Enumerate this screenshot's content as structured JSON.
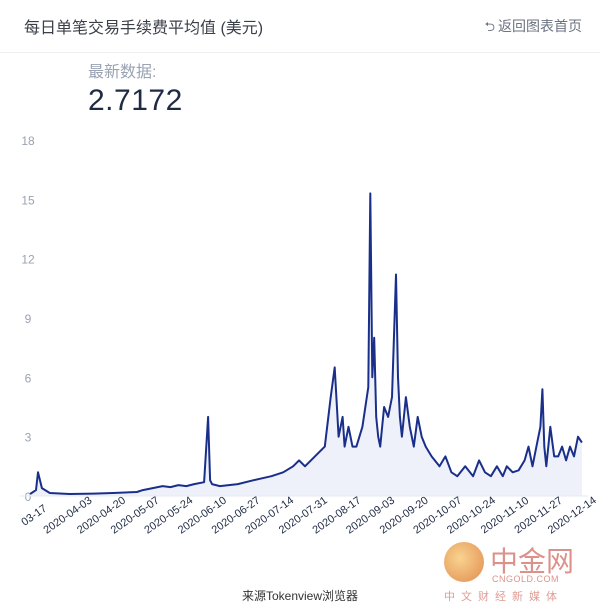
{
  "header": {
    "title": "每日单笔交易手续费平均值 (美元)",
    "back_label": "返回图表首页",
    "back_icon": "back-arrow-icon"
  },
  "latest": {
    "label": "最新数据:",
    "value": "2.7172"
  },
  "chart_data": {
    "type": "area",
    "title": "每日单笔交易手续费平均值 (美元)",
    "xlabel": "",
    "ylabel": "",
    "ylim": [
      0,
      18
    ],
    "yticks": [
      0,
      3,
      6,
      9,
      12,
      15,
      18
    ],
    "x_tick_labels": [
      "03-17",
      "2020-04-03",
      "2020-04-20",
      "2020-05-07",
      "2020-05-24",
      "2020-06-10",
      "2020-06-27",
      "2020-07-14",
      "2020-07-31",
      "2020-08-17",
      "2020-09-03",
      "2020-09-20",
      "2020-10-07",
      "2020-10-24",
      "2020-11-10",
      "2020-11-27",
      "2020-12-14"
    ],
    "grid": false,
    "line_color": "#1a2f8a",
    "fill_color": "#eef1fa",
    "series": [
      {
        "x": [
          "2020-03-14",
          "2020-03-17",
          "2020-03-18",
          "2020-03-20",
          "2020-03-24",
          "2020-04-03",
          "2020-04-15",
          "2020-04-25",
          "2020-05-07",
          "2020-05-10",
          "2020-05-15",
          "2020-05-20",
          "2020-05-24",
          "2020-05-28",
          "2020-06-01",
          "2020-06-05",
          "2020-06-10",
          "2020-06-12",
          "2020-06-13",
          "2020-06-14",
          "2020-06-18",
          "2020-06-27",
          "2020-07-05",
          "2020-07-14",
          "2020-07-20",
          "2020-07-25",
          "2020-07-28",
          "2020-07-31",
          "2020-08-05",
          "2020-08-10",
          "2020-08-13",
          "2020-08-15",
          "2020-08-17",
          "2020-08-19",
          "2020-08-20",
          "2020-08-22",
          "2020-08-24",
          "2020-08-26",
          "2020-08-29",
          "2020-09-01",
          "2020-09-02",
          "2020-09-03",
          "2020-09-04",
          "2020-09-05",
          "2020-09-06",
          "2020-09-07",
          "2020-09-09",
          "2020-09-11",
          "2020-09-13",
          "2020-09-15",
          "2020-09-16",
          "2020-09-17",
          "2020-09-18",
          "2020-09-20",
          "2020-09-22",
          "2020-09-24",
          "2020-09-26",
          "2020-09-28",
          "2020-09-30",
          "2020-10-03",
          "2020-10-07",
          "2020-10-10",
          "2020-10-13",
          "2020-10-16",
          "2020-10-20",
          "2020-10-24",
          "2020-10-27",
          "2020-10-30",
          "2020-11-02",
          "2020-11-05",
          "2020-11-08",
          "2020-11-10",
          "2020-11-13",
          "2020-11-16",
          "2020-11-19",
          "2020-11-21",
          "2020-11-23",
          "2020-11-25",
          "2020-11-27",
          "2020-11-28",
          "2020-11-29",
          "2020-11-30",
          "2020-12-02",
          "2020-12-04",
          "2020-12-06",
          "2020-12-08",
          "2020-12-10",
          "2020-12-12",
          "2020-12-14",
          "2020-12-16",
          "2020-12-18"
        ],
        "values": [
          0.1,
          0.3,
          1.2,
          0.4,
          0.15,
          0.1,
          0.12,
          0.15,
          0.2,
          0.3,
          0.4,
          0.5,
          0.45,
          0.55,
          0.5,
          0.6,
          0.7,
          4.0,
          0.8,
          0.6,
          0.5,
          0.6,
          0.8,
          1.0,
          1.2,
          1.5,
          1.8,
          1.5,
          2.0,
          2.5,
          5.0,
          6.5,
          3.0,
          4.0,
          2.5,
          3.5,
          2.5,
          2.5,
          3.5,
          5.5,
          15.3,
          6.0,
          8.0,
          4.0,
          3.0,
          2.5,
          4.5,
          4.0,
          5.0,
          11.2,
          6.0,
          4.0,
          3.0,
          5.0,
          3.5,
          2.5,
          4.0,
          3.0,
          2.5,
          2.0,
          1.5,
          2.0,
          1.2,
          1.0,
          1.5,
          1.0,
          1.8,
          1.2,
          1.0,
          1.5,
          1.0,
          1.5,
          1.2,
          1.3,
          1.8,
          2.5,
          1.5,
          2.5,
          3.5,
          5.4,
          2.5,
          1.5,
          3.5,
          2.0,
          2.0,
          2.5,
          1.8,
          2.5,
          2.0,
          3.0,
          2.7
        ]
      }
    ]
  },
  "source": "来源Tokenview浏览器",
  "watermark": {
    "cn": "中金网",
    "en": "CNGOLD.COM",
    "sub": "中文财经新媒体"
  }
}
